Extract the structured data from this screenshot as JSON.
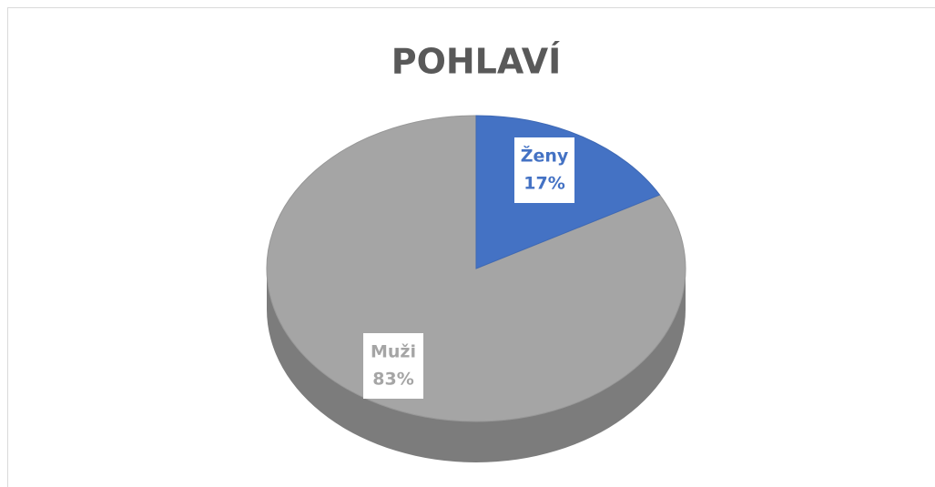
{
  "chart_data": {
    "type": "pie",
    "title": "POHLAVÍ",
    "categories": [
      "Ženy",
      "Muži"
    ],
    "values": [
      17,
      83
    ],
    "value_labels": [
      "17%",
      "83%"
    ],
    "colors": [
      "#4472c4",
      "#a5a5a5"
    ]
  }
}
